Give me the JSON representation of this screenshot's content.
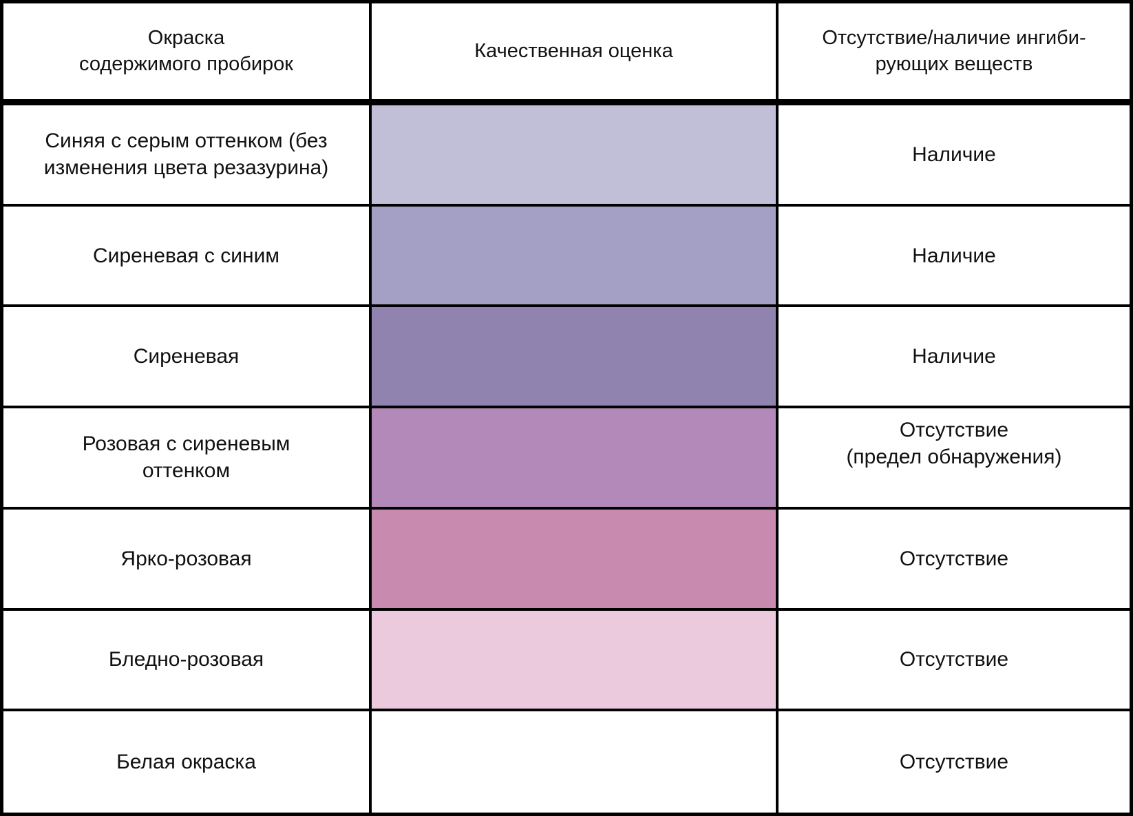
{
  "table": {
    "columns": [
      {
        "label": "Окраска\nсодержимого пробирок"
      },
      {
        "label": "Качественная оценка"
      },
      {
        "label": "Отсутствие/наличие ингиби-\nрующих веществ"
      }
    ],
    "rows": [
      {
        "color_label": "Синяя с серым оттенком (без\nизменения цвета резазурина)",
        "swatch_color": "#c1bed8",
        "result": "Наличие"
      },
      {
        "color_label": "Сиреневая с синим",
        "swatch_color": "#a49fc5",
        "result": "Наличие"
      },
      {
        "color_label": "Сиреневая",
        "swatch_color": "#9183b0",
        "result": "Наличие"
      },
      {
        "color_label": "Розовая с сиреневым\nоттенком",
        "swatch_color": "#b289b8",
        "result": "Отсутствие\n(предел обнаружения)"
      },
      {
        "color_label": "Ярко-розовая",
        "swatch_color": "#c88aaf",
        "result": "Отсутствие"
      },
      {
        "color_label": "Бледно-розовая",
        "swatch_color": "#eccade",
        "result": "Отсутствие"
      },
      {
        "color_label": "Белая окраска",
        "swatch_color": "#ffffff",
        "result": "Отсутствие"
      }
    ]
  },
  "colors": {
    "border": "#000000",
    "text": "#111111",
    "background": "#ffffff"
  }
}
